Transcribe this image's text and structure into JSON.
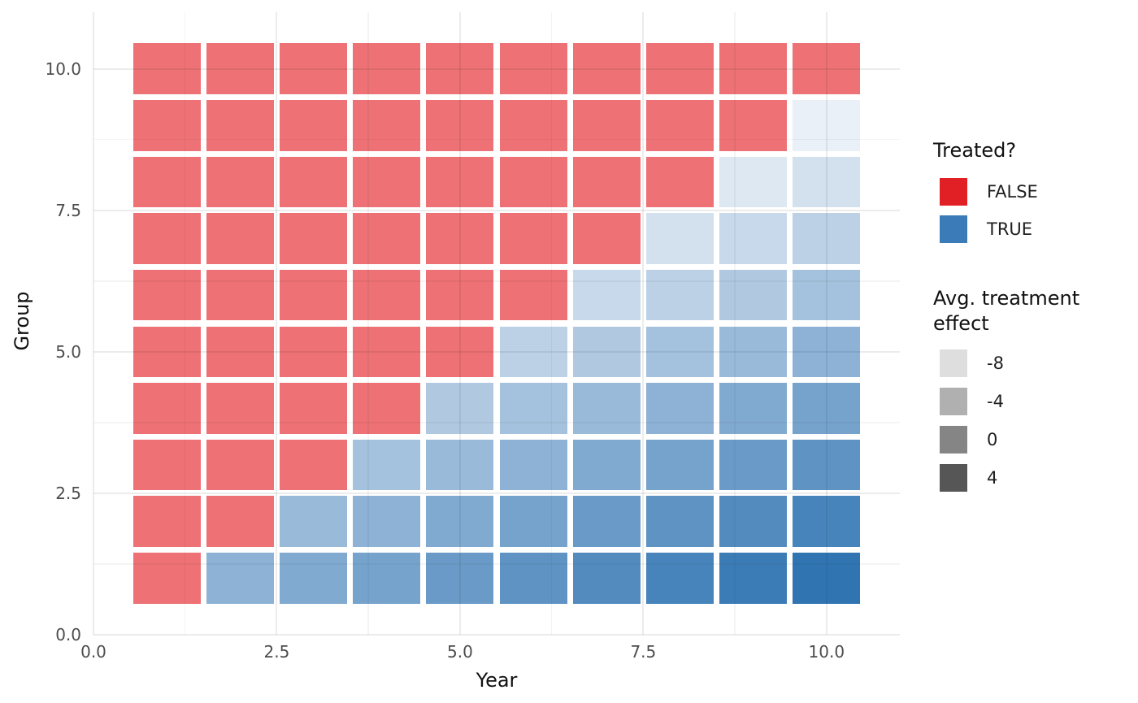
{
  "chart_data": {
    "type": "heatmap",
    "title": "",
    "xlabel": "Year",
    "ylabel": "Group",
    "x_domain": [
      0,
      11
    ],
    "y_domain": [
      0,
      11
    ],
    "x_major_ticks": [
      {
        "value": 0,
        "label": "0.0"
      },
      {
        "value": 2.5,
        "label": "2.5"
      },
      {
        "value": 5,
        "label": "5.0"
      },
      {
        "value": 7.5,
        "label": "7.5"
      },
      {
        "value": 10,
        "label": "10.0"
      }
    ],
    "x_minor_ticks": [
      1.25,
      3.75,
      6.25,
      8.75
    ],
    "y_major_ticks": [
      {
        "value": 0,
        "label": "0.0"
      },
      {
        "value": 2.5,
        "label": "2.5"
      },
      {
        "value": 5,
        "label": "5.0"
      },
      {
        "value": 7.5,
        "label": "7.5"
      },
      {
        "value": 10,
        "label": "10.0"
      }
    ],
    "y_minor_ticks": [
      1.25,
      3.75,
      6.25,
      8.75
    ],
    "years": [
      1,
      2,
      3,
      4,
      5,
      6,
      7,
      8,
      9,
      10
    ],
    "groups": [
      1,
      2,
      3,
      4,
      5,
      6,
      7,
      8,
      9,
      10
    ],
    "treated_rule": "group g is treated (TRUE, blue) from year g+1 onward; group 10 is never treated (all FALSE, red)",
    "effect_grid_note": "rows indexed group 1..10 (bottom row of plot first); columns year 1..10; null = untreated (FALSE); number = avg. treatment effect shown by blue shade",
    "effect_grid": [
      [
        null,
        0,
        1,
        2,
        3,
        4,
        5,
        6,
        7,
        8
      ],
      [
        null,
        null,
        -1,
        0,
        1,
        2,
        3,
        4,
        5,
        6
      ],
      [
        null,
        null,
        null,
        -2,
        -1,
        0,
        1,
        2,
        3,
        4
      ],
      [
        null,
        null,
        null,
        null,
        -3,
        -2,
        -1,
        0,
        1,
        2
      ],
      [
        null,
        null,
        null,
        null,
        null,
        -4,
        -3,
        -2,
        -1,
        0
      ],
      [
        null,
        null,
        null,
        null,
        null,
        null,
        -5,
        -4,
        -3,
        -2
      ],
      [
        null,
        null,
        null,
        null,
        null,
        null,
        null,
        -6,
        -5,
        -4
      ],
      [
        null,
        null,
        null,
        null,
        null,
        null,
        null,
        null,
        -7,
        -6
      ],
      [
        null,
        null,
        null,
        null,
        null,
        null,
        null,
        null,
        null,
        -8
      ],
      [
        null,
        null,
        null,
        null,
        null,
        null,
        null,
        null,
        null,
        null
      ]
    ],
    "colors": {
      "untreated_fill": "#ED7175",
      "treated_ramp_low": "#EAF0F7",
      "treated_ramp_high": "#3074B2",
      "effect_color_domain": [
        -8,
        8
      ],
      "gridline_major": "#E8E8E8",
      "gridline_minor": "#F2F2F2"
    },
    "grid": true,
    "legend_position": "right"
  },
  "legends": {
    "treated": {
      "title": "Treated?",
      "items": [
        {
          "label": "FALSE",
          "color": "#E02025"
        },
        {
          "label": "TRUE",
          "color": "#3B7CB8"
        }
      ]
    },
    "effect": {
      "title": "Avg. treatment effect",
      "items": [
        {
          "label": "-8",
          "color": "#DEDEDE"
        },
        {
          "label": "-4",
          "color": "#B0B0B0"
        },
        {
          "label": "0",
          "color": "#858585"
        },
        {
          "label": "4",
          "color": "#565656"
        }
      ]
    }
  }
}
